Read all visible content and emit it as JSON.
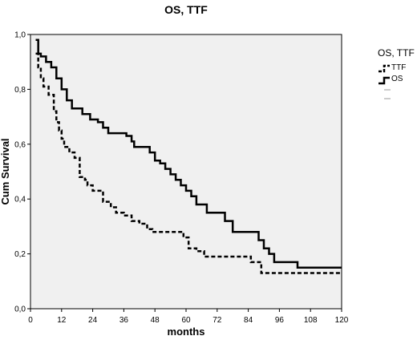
{
  "chart_data": {
    "type": "line",
    "title": "OS, TTF",
    "xlabel": "months",
    "ylabel": "Cum Survival",
    "xlim": [
      0,
      120
    ],
    "ylim": [
      0.0,
      1.0
    ],
    "x_ticks": [
      "0",
      "12",
      "24",
      "36",
      "48",
      "60",
      "72",
      "84",
      "96",
      "108",
      "120"
    ],
    "y_ticks": [
      "0,0",
      "0,2",
      "0,4",
      "0,6",
      "0,8",
      "1,0"
    ],
    "grid": false,
    "background": "#f0f0f0",
    "legend": {
      "title": "OS, TTF",
      "placement": "right"
    },
    "series": [
      {
        "name": "TTF",
        "style": "dashed",
        "color": "#000000",
        "points": [
          [
            2,
            0.93
          ],
          [
            3,
            0.88
          ],
          [
            4,
            0.84
          ],
          [
            5,
            0.81
          ],
          [
            7,
            0.78
          ],
          [
            9,
            0.72
          ],
          [
            10,
            0.68
          ],
          [
            11,
            0.65
          ],
          [
            12,
            0.62
          ],
          [
            13,
            0.59
          ],
          [
            15,
            0.57
          ],
          [
            17,
            0.55
          ],
          [
            19,
            0.48
          ],
          [
            21,
            0.47
          ],
          [
            22,
            0.45
          ],
          [
            24,
            0.43
          ],
          [
            28,
            0.39
          ],
          [
            31,
            0.37
          ],
          [
            33,
            0.35
          ],
          [
            36,
            0.34
          ],
          [
            39,
            0.32
          ],
          [
            42,
            0.31
          ],
          [
            45,
            0.29
          ],
          [
            47,
            0.28
          ],
          [
            59,
            0.26
          ],
          [
            61,
            0.22
          ],
          [
            64,
            0.21
          ],
          [
            67,
            0.19
          ],
          [
            85,
            0.17
          ],
          [
            89,
            0.13
          ],
          [
            120,
            0.13
          ]
        ]
      },
      {
        "name": "OS",
        "style": "solid",
        "color": "#000000",
        "points": [
          [
            2,
            0.98
          ],
          [
            3,
            0.93
          ],
          [
            4,
            0.92
          ],
          [
            6,
            0.9
          ],
          [
            8,
            0.88
          ],
          [
            10,
            0.84
          ],
          [
            12,
            0.8
          ],
          [
            14,
            0.76
          ],
          [
            16,
            0.73
          ],
          [
            20,
            0.71
          ],
          [
            23,
            0.69
          ],
          [
            26,
            0.68
          ],
          [
            28,
            0.66
          ],
          [
            30,
            0.64
          ],
          [
            37,
            0.63
          ],
          [
            39,
            0.61
          ],
          [
            40,
            0.59
          ],
          [
            46,
            0.57
          ],
          [
            48,
            0.54
          ],
          [
            50,
            0.53
          ],
          [
            52,
            0.51
          ],
          [
            54,
            0.49
          ],
          [
            56,
            0.47
          ],
          [
            58,
            0.45
          ],
          [
            60,
            0.43
          ],
          [
            62,
            0.41
          ],
          [
            64,
            0.38
          ],
          [
            68,
            0.35
          ],
          [
            75,
            0.32
          ],
          [
            78,
            0.28
          ],
          [
            88,
            0.25
          ],
          [
            90,
            0.22
          ],
          [
            92,
            0.2
          ],
          [
            94,
            0.17
          ],
          [
            103,
            0.15
          ],
          [
            120,
            0.15
          ]
        ]
      }
    ]
  }
}
